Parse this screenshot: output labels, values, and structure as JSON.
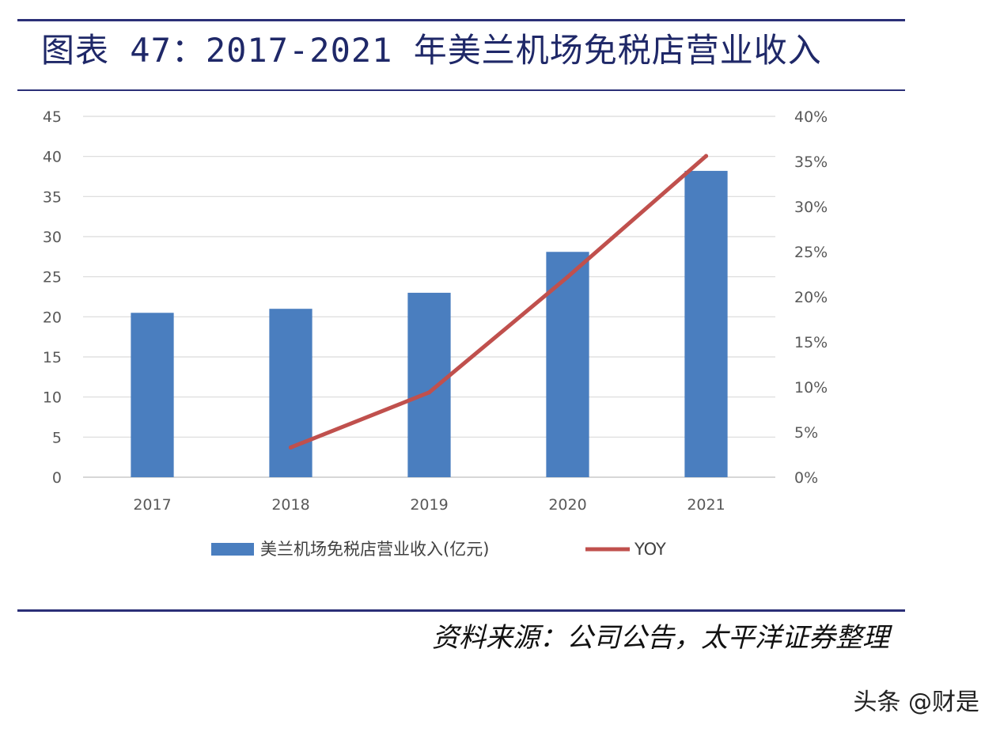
{
  "header": {
    "title": "图表 47：2017-2021 年美兰机场免税店营业收入"
  },
  "footer": {
    "source": "资料来源：公司公告，太平洋证券整理",
    "watermark": "头条 @财是"
  },
  "colors": {
    "bar": "#4a7ebf",
    "line": "#c0504d",
    "rule": "#2b2f77",
    "grid": "#d9d9d9"
  },
  "chart_data": {
    "type": "bar",
    "title": "",
    "categories": [
      "2017",
      "2018",
      "2019",
      "2020",
      "2021"
    ],
    "series": [
      {
        "name": "美兰机场免税店营业收入(亿元)",
        "type": "bar",
        "axis": "left",
        "values": [
          20.5,
          21.0,
          23.0,
          28.1,
          38.2
        ]
      },
      {
        "name": "YOY",
        "type": "line",
        "axis": "right",
        "values": [
          null,
          0.033,
          0.094,
          0.222,
          0.356
        ]
      }
    ],
    "y_left": {
      "ylim": [
        0,
        45
      ],
      "ticks": [
        "0",
        "5",
        "10",
        "15",
        "20",
        "25",
        "30",
        "35",
        "40",
        "45"
      ]
    },
    "y_right": {
      "ylim": [
        0,
        0.4
      ],
      "ticks": [
        "0%",
        "5%",
        "10%",
        "15%",
        "20%",
        "25%",
        "30%",
        "35%",
        "40%"
      ]
    },
    "grid": true,
    "legend": "bottom"
  }
}
